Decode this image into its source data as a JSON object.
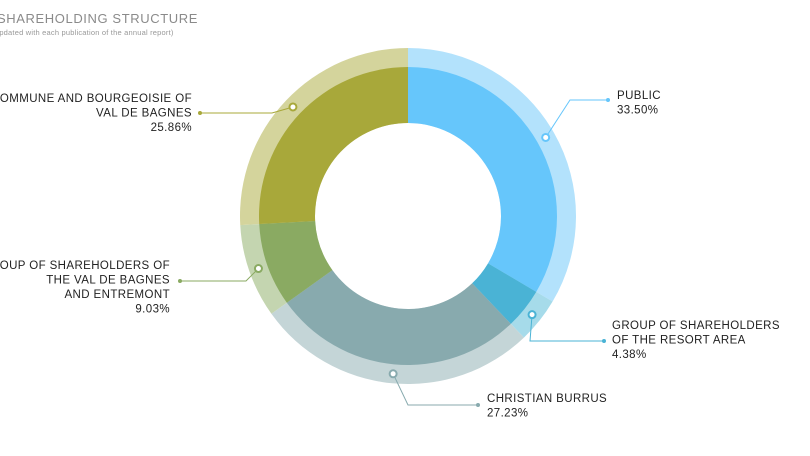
{
  "chart_data": {
    "type": "donut",
    "title": "SHAREHOLDING STRUCTURE",
    "subtitle": "(Updated with each publication of the annual report)",
    "categories": [
      [
        "PUBLIC"
      ],
      [
        "GROUP OF SHAREHOLDERS",
        "OF THE RESORT AREA"
      ],
      [
        "CHRISTIAN BURRUS"
      ],
      [
        "GROUP OF SHAREHOLDERS OF",
        "THE VAL DE BAGNES",
        "AND ENTREMONT"
      ],
      [
        "COMMUNE AND BOURGEOISIE OF",
        "VAL DE BAGNES"
      ]
    ],
    "values": [
      33.5,
      4.38,
      27.23,
      9.03,
      25.86
    ],
    "value_labels": [
      "33.50%",
      "4.38%",
      "27.23%",
      "9.03%",
      "25.86%"
    ],
    "colors": [
      "#66c6fb",
      "#4ab3d5",
      "#88aaae",
      "#8aaa62",
      "#a8a83a"
    ],
    "ring_colors": [
      "#b3e2fc",
      "#a6dbea",
      "#c4d5d7",
      "#c4d5b0",
      "#d4d49c"
    ],
    "line_colors": [
      "#66c6fb",
      "#4ab3d5",
      "#88aaae",
      "#8aaa62",
      "#a8a83a"
    ]
  }
}
